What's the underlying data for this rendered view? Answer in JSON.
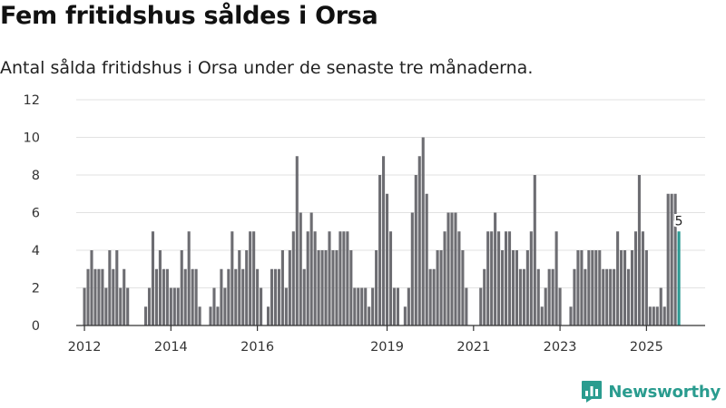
{
  "colors": {
    "bar": "#6d6d72",
    "highlight": "#2b9a93",
    "grid": "#e2e2e2",
    "axis": "#333333",
    "brand": "#2a9c8f"
  },
  "brand": {
    "name": "Newsworthy",
    "icon": "bar-chart-logo-icon"
  },
  "chart_data": {
    "type": "bar",
    "title": "Fem fritidshus såldes i Orsa",
    "subtitle": "Antal sålda fritidshus i Orsa under de senaste tre månaderna.",
    "xlabel": "",
    "ylabel": "",
    "ylim": [
      0,
      12
    ],
    "y_ticks": [
      0,
      2,
      4,
      6,
      8,
      10,
      12
    ],
    "x_ticks": [
      "2012",
      "2014",
      "2016",
      "2019",
      "2021",
      "2023",
      "2025"
    ],
    "grid": true,
    "x_start": "2012-01",
    "x_end": "2025-08",
    "highlight_label": "5",
    "values": [
      2,
      3,
      4,
      3,
      3,
      3,
      2,
      4,
      3,
      4,
      2,
      3,
      2,
      0,
      0,
      0,
      0,
      1,
      2,
      5,
      3,
      4,
      3,
      3,
      2,
      2,
      2,
      4,
      3,
      5,
      3,
      3,
      1,
      0,
      0,
      1,
      2,
      1,
      3,
      2,
      3,
      5,
      3,
      4,
      3,
      4,
      5,
      5,
      3,
      2,
      0,
      1,
      3,
      3,
      3,
      4,
      2,
      4,
      5,
      9,
      6,
      3,
      5,
      6,
      5,
      4,
      4,
      4,
      5,
      4,
      4,
      5,
      5,
      5,
      4,
      2,
      2,
      2,
      2,
      1,
      2,
      4,
      8,
      9,
      7,
      5,
      2,
      2,
      0,
      1,
      2,
      6,
      8,
      9,
      10,
      7,
      3,
      3,
      4,
      4,
      5,
      6,
      6,
      6,
      5,
      4,
      2,
      0,
      0,
      0,
      2,
      3,
      5,
      5,
      6,
      5,
      4,
      5,
      5,
      4,
      4,
      3,
      3,
      4,
      5,
      8,
      3,
      1,
      2,
      3,
      3,
      5,
      2,
      0,
      0,
      1,
      3,
      4,
      4,
      3,
      4,
      4,
      4,
      4,
      3,
      3,
      3,
      3,
      5,
      4,
      4,
      3,
      4,
      5,
      8,
      5,
      4,
      1,
      1,
      1,
      2,
      1,
      7,
      7,
      7,
      5
    ]
  }
}
